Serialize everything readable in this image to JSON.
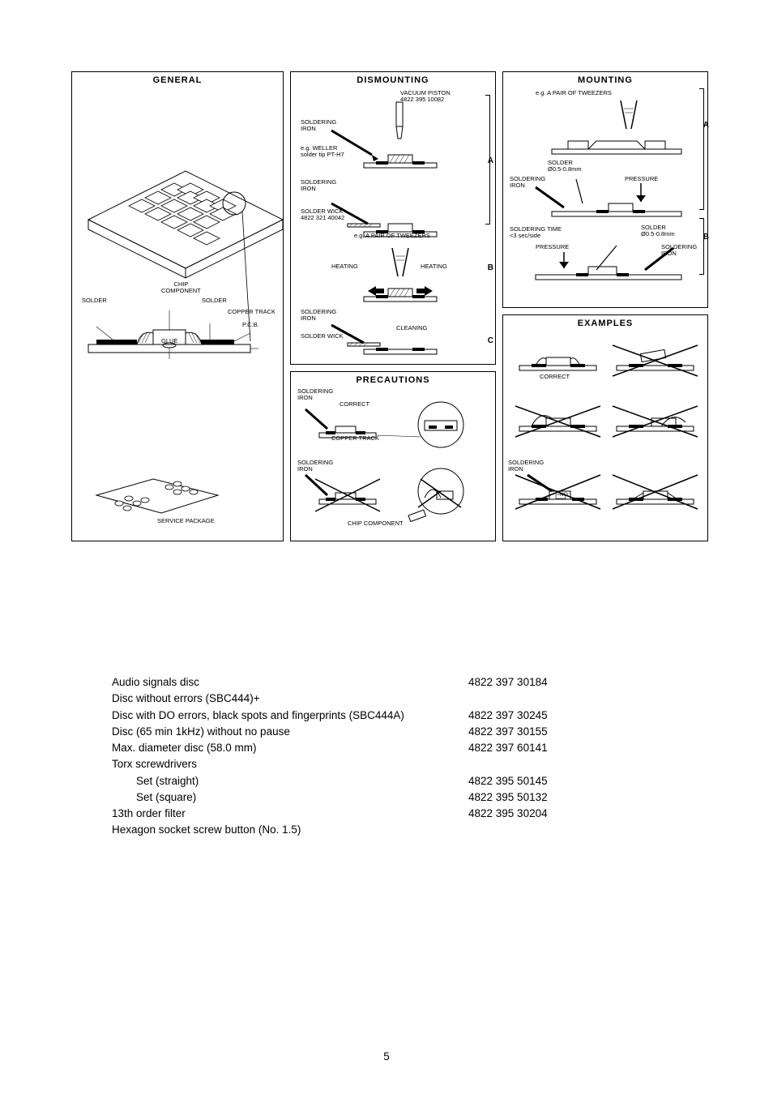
{
  "panels": {
    "general": {
      "title": "GENERAL",
      "labels": {
        "chip_component": "CHIP\nCOMPONENT",
        "solder_l": "SOLDER",
        "solder_r": "SOLDER",
        "copper_track": "COPPER TRACK",
        "pcb": "P.C.B.",
        "glue": "GLUE",
        "service_package": "SERVICE PACKAGE"
      }
    },
    "dismounting": {
      "title": "DISMOUNTING",
      "labels": {
        "vacuum_piston": "VACUUM PISTON\n4822 395 10082",
        "soldering_iron_1": "SOLDERING\nIRON",
        "weller_tip": "e.g. WELLER\nsolder tip PT-H7",
        "soldering_iron_2": "SOLDERING\nIRON",
        "solder_wick_1": "SOLDER WICK\n4822 321 40042",
        "tweezers": "e.g. A PAIR OF TWEEZERS",
        "heating_l": "HEATING",
        "heating_r": "HEATING",
        "soldering_iron_3": "SOLDERING\nIRON",
        "solder_wick_2": "SOLDER WICK",
        "cleaning": "CLEANING",
        "letter_a": "A",
        "letter_b": "B",
        "letter_c": "C"
      }
    },
    "precautions": {
      "title": "PRECAUTIONS",
      "labels": {
        "soldering_iron_1": "SOLDERING\nIRON",
        "correct": "CORRECT",
        "copper_track": "COPPER TRACK",
        "soldering_iron_2": "SOLDERING\nIRON",
        "chip_component": "CHIP COMPONENT"
      }
    },
    "mounting": {
      "title": "MOUNTING",
      "labels": {
        "tweezers": "e.g. A PAIR OF TWEEZERS",
        "solder_dia": "SOLDER\nØ0.5-0.8mm",
        "soldering_iron_1": "SOLDERING\nIRON",
        "pressure_1": "PRESSURE",
        "soldering_time": "SOLDERING TIME\n<3 sec/side",
        "solder_dia_2": "SOLDER\nØ0.5-0.8mm",
        "pressure_2": "PRESSURE",
        "soldering_iron_2": "SOLDERING\nIRON",
        "letter_a": "A",
        "letter_b": "B"
      }
    },
    "examples": {
      "title": "EXAMPLES",
      "labels": {
        "correct": "CORRECT",
        "soldering_iron": "SOLDERING\nIRON",
        "no": "NO"
      }
    }
  },
  "parts": {
    "rows": [
      {
        "desc": "Audio signals disc",
        "code": "4822 397 30184"
      },
      {
        "desc": "Disc without errors (SBC444)+",
        "code": ""
      },
      {
        "desc": "Disc with DO errors, black spots and fingerprints (SBC444A)",
        "code": "4822 397 30245"
      },
      {
        "desc": "Disc (65 min 1kHz) without no pause",
        "code": "4822 397 30155"
      },
      {
        "desc": "Max. diameter disc (58.0 mm)",
        "code": "4822 397 60141"
      },
      {
        "desc": "Torx screwdrivers",
        "code": ""
      },
      {
        "desc": "Set (straight)",
        "code": "4822 395 50145",
        "indent": true
      },
      {
        "desc": "Set (square)",
        "code": "4822 395 50132",
        "indent": true
      },
      {
        "desc": "13th order filter",
        "code": "4822 395 30204"
      },
      {
        "desc": "Hexagon socket screw button (No. 1.5)",
        "code": ""
      }
    ]
  },
  "page_number": "5",
  "colors": {
    "stroke": "#000000",
    "bg": "#ffffff"
  }
}
